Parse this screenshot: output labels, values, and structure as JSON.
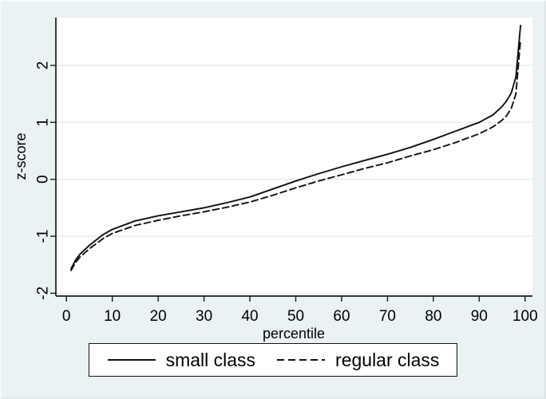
{
  "figure": {
    "background": "#eaf2f3",
    "plot_background": "#ffffff",
    "grid_color": "#e2ebec",
    "axis_color": "#1a1a1a",
    "line_color": "#111111"
  },
  "chart_data": {
    "type": "line",
    "title": "",
    "xlabel": "percentile",
    "ylabel": "z-score",
    "xlim": [
      -2.3,
      101.6
    ],
    "ylim": [
      -2.05,
      2.84
    ],
    "xticks": [
      0,
      10,
      20,
      30,
      40,
      50,
      60,
      70,
      80,
      90,
      100
    ],
    "yticks": [
      -2,
      -1,
      0,
      1,
      2
    ],
    "grid": "horizontal",
    "legend_position": "bottom",
    "x": [
      1,
      2,
      3,
      5,
      8,
      10,
      15,
      20,
      25,
      30,
      35,
      40,
      45,
      50,
      55,
      60,
      65,
      70,
      75,
      80,
      85,
      90,
      93,
      95,
      96,
      97,
      98,
      99
    ],
    "series": [
      {
        "name": "small class",
        "style": "solid",
        "values": [
          -1.57,
          -1.42,
          -1.31,
          -1.16,
          -0.97,
          -0.88,
          -0.73,
          -0.64,
          -0.57,
          -0.5,
          -0.41,
          -0.31,
          -0.17,
          -0.03,
          0.1,
          0.22,
          0.33,
          0.44,
          0.56,
          0.7,
          0.85,
          1.0,
          1.13,
          1.28,
          1.38,
          1.52,
          1.8,
          2.7
        ]
      },
      {
        "name": "regular class",
        "style": "dashed",
        "values": [
          -1.6,
          -1.46,
          -1.36,
          -1.22,
          -1.04,
          -0.95,
          -0.81,
          -0.72,
          -0.64,
          -0.57,
          -0.49,
          -0.4,
          -0.28,
          -0.15,
          -0.03,
          0.08,
          0.19,
          0.29,
          0.41,
          0.52,
          0.65,
          0.8,
          0.92,
          1.04,
          1.12,
          1.25,
          1.5,
          2.45
        ]
      }
    ]
  }
}
